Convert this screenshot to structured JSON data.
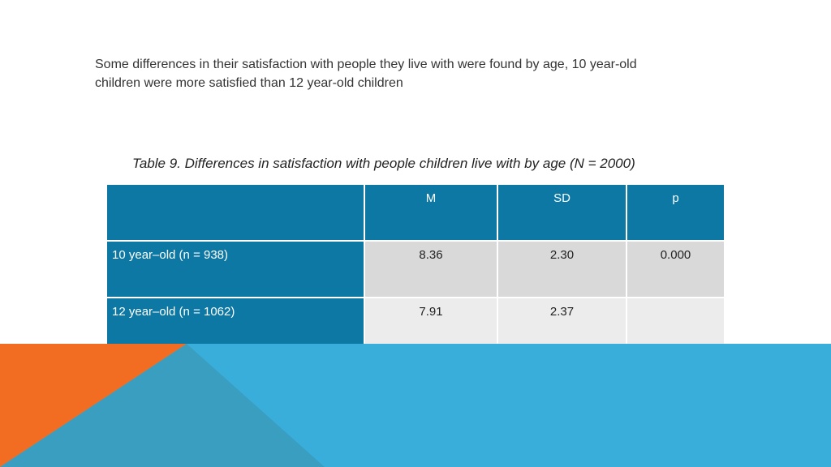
{
  "intro": {
    "line1": "Some differences in their satisfaction with people they live with were found by age, 10 year-old",
    "line2": "children were more satisfied than 12 year-old children"
  },
  "table": {
    "caption": "Table 9. Differences in satisfaction with people children live with by age (N = 2000)",
    "headers": [
      "",
      "M",
      "SD",
      "p"
    ],
    "rows": [
      {
        "label": "10 year–old (n = 938)",
        "m": "8.36",
        "sd": "2.30",
        "p": "0.000"
      },
      {
        "label": "12 year–old (n = 1062)",
        "m": "7.91",
        "sd": "2.37",
        "p": ""
      }
    ]
  },
  "colors": {
    "header_blue": "#0c78a3",
    "cell_gray_dark": "#d9d9d9",
    "cell_gray_light": "#ececec",
    "banner_blue": "#3aaedb",
    "banner_orange": "#f26d21",
    "banner_teal": "#3a9ec0"
  }
}
